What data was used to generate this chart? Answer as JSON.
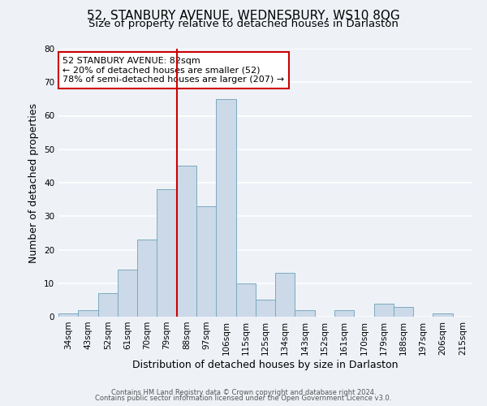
{
  "title": "52, STANBURY AVENUE, WEDNESBURY, WS10 8QG",
  "subtitle": "Size of property relative to detached houses in Darlaston",
  "xlabel": "Distribution of detached houses by size in Darlaston",
  "ylabel": "Number of detached properties",
  "bar_labels": [
    "34sqm",
    "43sqm",
    "52sqm",
    "61sqm",
    "70sqm",
    "79sqm",
    "88sqm",
    "97sqm",
    "106sqm",
    "115sqm",
    "125sqm",
    "134sqm",
    "143sqm",
    "152sqm",
    "161sqm",
    "170sqm",
    "179sqm",
    "188sqm",
    "197sqm",
    "206sqm",
    "215sqm"
  ],
  "bar_values": [
    1,
    2,
    7,
    14,
    23,
    38,
    45,
    33,
    65,
    10,
    5,
    13,
    2,
    0,
    2,
    0,
    4,
    3,
    0,
    1,
    0
  ],
  "bar_color": "#ccd9e8",
  "bar_edgecolor": "#7aaabf",
  "vline_x_index": 5,
  "vline_color": "#cc0000",
  "annotation_title": "52 STANBURY AVENUE: 82sqm",
  "annotation_line1": "← 20% of detached houses are smaller (52)",
  "annotation_line2": "78% of semi-detached houses are larger (207) →",
  "annotation_box_edgecolor": "#cc0000",
  "ylim_max": 80,
  "yticks": [
    0,
    10,
    20,
    30,
    40,
    50,
    60,
    70,
    80
  ],
  "footer1": "Contains HM Land Registry data © Crown copyright and database right 2024.",
  "footer2": "Contains public sector information licensed under the Open Government Licence v3.0.",
  "bg_color": "#eef2f7",
  "grid_color": "#ffffff",
  "title_fontsize": 11,
  "subtitle_fontsize": 9.5,
  "tick_fontsize": 7.5,
  "ylabel_fontsize": 9,
  "xlabel_fontsize": 9,
  "footer_fontsize": 6,
  "annotation_fontsize": 8
}
